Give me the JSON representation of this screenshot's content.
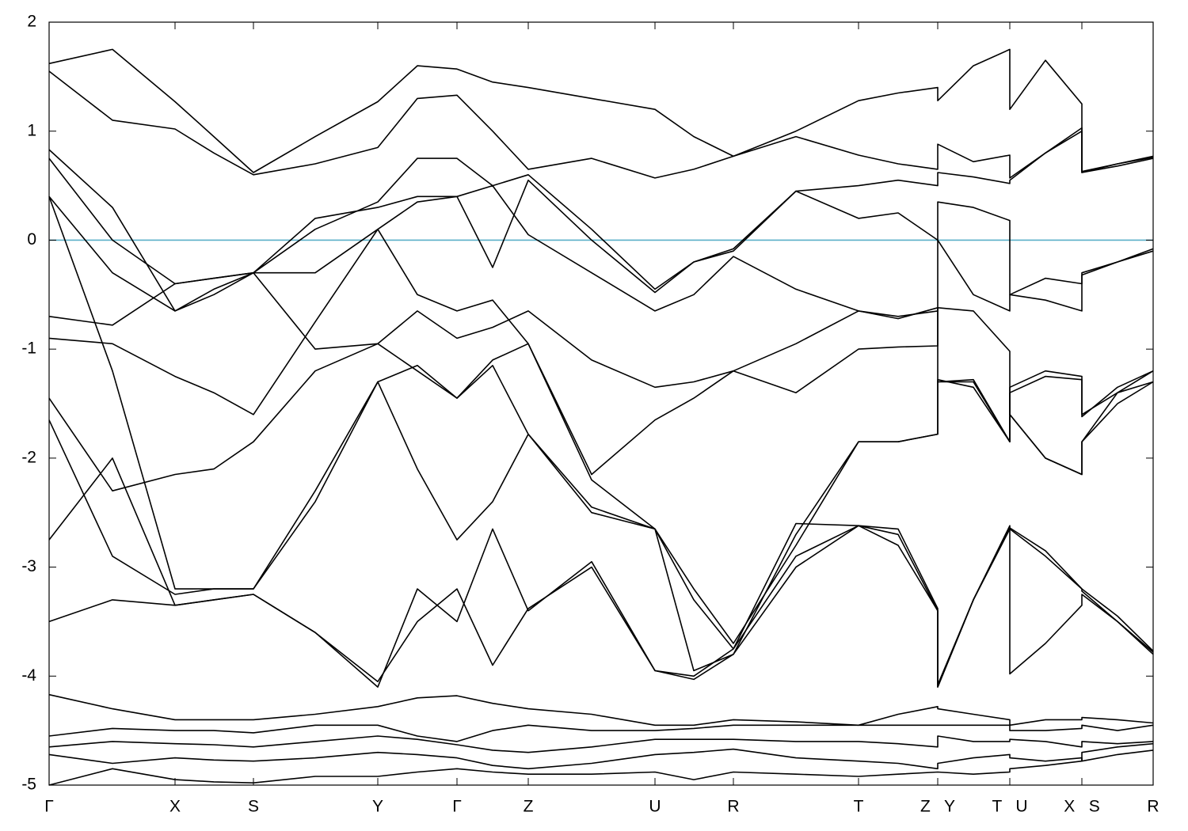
{
  "chart_data": {
    "type": "line",
    "xlim": [
      0,
      13.94
    ],
    "ylim": [
      -5,
      2
    ],
    "yticks": [
      -5,
      -4,
      -3,
      -2,
      -1,
      0,
      1,
      2
    ],
    "xticks": [
      {
        "value": 0,
        "label": "Γ"
      },
      {
        "value": 1.59,
        "label": "X"
      },
      {
        "value": 2.58,
        "label": "S"
      },
      {
        "value": 4.15,
        "label": "Y"
      },
      {
        "value": 5.15,
        "label": "Γ"
      },
      {
        "value": 6.05,
        "label": "Z"
      },
      {
        "value": 7.65,
        "label": "U"
      },
      {
        "value": 8.64,
        "label": "R"
      },
      {
        "value": 10.22,
        "label": "T"
      },
      {
        "value": 11.22,
        "label": "Z   Y"
      },
      {
        "value": 12.13,
        "label": "T   U"
      },
      {
        "value": 13.04,
        "label": "X   S"
      },
      {
        "value": 13.94,
        "label": "R"
      }
    ],
    "grid": true,
    "hline": {
      "value": 0,
      "color": "#5aafc8"
    },
    "x": [
      0,
      0.8,
      1.59,
      2.08,
      2.58,
      3.36,
      4.15,
      4.65,
      5.15,
      5.6,
      6.05,
      6.85,
      7.65,
      8.14,
      8.64,
      9.43,
      10.22,
      10.72,
      11.22,
      11.22,
      11.67,
      12.13,
      12.13,
      12.58,
      13.04,
      13.04,
      13.49,
      13.94
    ],
    "series": [
      {
        "color": "#000000",
        "values": [
          1.62,
          1.75,
          1.27,
          0.95,
          0.62,
          0.95,
          1.27,
          1.6,
          1.57,
          1.45,
          1.4,
          1.3,
          1.2,
          0.95,
          0.77,
          1.0,
          1.28,
          1.35,
          1.4,
          1.28,
          1.6,
          1.75,
          1.2,
          1.65,
          1.25,
          0.62,
          0.7,
          0.77
        ]
      },
      {
        "color": "#000000",
        "values": [
          1.55,
          1.1,
          1.02,
          0.8,
          0.6,
          0.7,
          0.85,
          1.3,
          1.33,
          1.0,
          0.65,
          0.75,
          0.57,
          0.65,
          0.77,
          0.95,
          0.78,
          0.7,
          0.65,
          0.88,
          0.72,
          0.78,
          0.57,
          0.8,
          1.03,
          0.63,
          0.7,
          0.76
        ]
      },
      {
        "color": "#000000",
        "values": [
          0.83,
          0.3,
          -0.65,
          -0.45,
          -0.3,
          0.2,
          0.3,
          0.4,
          0.4,
          -0.25,
          0.55,
          0.0,
          -0.48,
          -0.2,
          -0.1,
          0.45,
          0.5,
          0.55,
          0.5,
          0.62,
          0.58,
          0.52,
          0.55,
          0.8,
          1.0,
          0.62,
          0.68,
          0.75
        ]
      },
      {
        "color": "#000000",
        "values": [
          0.75,
          0.0,
          -0.4,
          -0.35,
          -0.3,
          0.1,
          0.35,
          0.75,
          0.75,
          0.5,
          0.6,
          0.1,
          -0.45,
          -0.2,
          -0.08,
          0.45,
          0.2,
          0.25,
          0.0,
          0.35,
          0.3,
          0.18,
          -0.5,
          -0.35,
          -0.4,
          -0.3,
          -0.2,
          -0.08
        ]
      },
      {
        "color": "#000000",
        "values": [
          0.4,
          -0.3,
          -0.65,
          -0.5,
          -0.3,
          -0.3,
          0.1,
          0.35,
          0.4,
          0.5,
          0.05,
          -0.3,
          -0.65,
          -0.5,
          -0.15,
          -0.45,
          -0.65,
          -0.7,
          -0.65,
          0.0,
          -0.5,
          -0.65,
          -0.5,
          -0.55,
          -0.65,
          -0.32,
          -0.2,
          -0.1
        ]
      },
      {
        "color": "#000000",
        "values": [
          0.4,
          -1.2,
          -3.2,
          -3.2,
          -3.2,
          -2.4,
          -1.3,
          -1.15,
          -1.45,
          -1.1,
          -0.95,
          -2.2,
          -2.65,
          -3.3,
          -3.75,
          -2.6,
          -2.62,
          -2.8,
          -3.4,
          -4.1,
          -3.3,
          -2.65,
          -2.65,
          -2.9,
          -3.2,
          -3.2,
          -3.45,
          -3.77
        ]
      },
      {
        "color": "#000000",
        "values": [
          -0.7,
          -0.78,
          -0.4,
          -0.35,
          -0.3,
          -1.0,
          -0.95,
          -0.65,
          -0.9,
          -0.8,
          -0.65,
          -1.1,
          -1.35,
          -1.3,
          -1.2,
          -0.95,
          -0.65,
          -0.72,
          -0.62,
          -1.3,
          -1.3,
          -1.85,
          -1.35,
          -1.2,
          -1.25,
          -1.6,
          -1.4,
          -1.2
        ]
      },
      {
        "color": "#000000",
        "values": [
          -0.9,
          -0.95,
          -1.25,
          -1.4,
          -1.6,
          -0.75,
          0.1,
          -0.5,
          -0.65,
          -0.55,
          -0.95,
          -2.15,
          -1.65,
          -1.45,
          -1.2,
          -1.4,
          -1.0,
          -0.98,
          -0.97,
          -0.62,
          -0.65,
          -1.02,
          -1.6,
          -2.0,
          -2.15,
          -1.85,
          -1.5,
          -1.3
        ]
      },
      {
        "color": "#000000",
        "values": [
          -1.45,
          -2.3,
          -2.15,
          -2.1,
          -1.85,
          -1.2,
          -0.95,
          -1.2,
          -1.45,
          -1.15,
          -1.78,
          -2.5,
          -2.65,
          -3.95,
          -3.8,
          -2.7,
          -1.85,
          -1.85,
          -1.78,
          -1.3,
          -1.28,
          -1.85,
          -1.6,
          -2.0,
          -2.15,
          -1.85,
          -1.4,
          -1.3
        ]
      },
      {
        "color": "#000000",
        "values": [
          -1.65,
          -2.9,
          -3.25,
          -3.2,
          -3.2,
          -2.3,
          -1.3,
          -2.1,
          -2.75,
          -2.4,
          -1.78,
          -2.45,
          -2.65,
          -3.2,
          -3.7,
          -2.8,
          -1.85,
          -1.85,
          -1.78,
          -1.28,
          -1.35,
          -1.85,
          -1.4,
          -1.25,
          -1.28,
          -1.62,
          -1.35,
          -1.2
        ]
      },
      {
        "color": "#000000",
        "values": [
          -2.75,
          -2.0,
          -3.35,
          -3.3,
          -3.25,
          -3.6,
          -4.1,
          -3.2,
          -3.5,
          -2.65,
          -3.4,
          -2.95,
          -3.95,
          -4.03,
          -3.8,
          -3.0,
          -2.62,
          -2.7,
          -3.4,
          -4.1,
          -3.3,
          -2.62,
          -3.98,
          -3.7,
          -3.35,
          -3.25,
          -3.5,
          -3.78
        ]
      },
      {
        "color": "#000000",
        "values": [
          -3.5,
          -3.3,
          -3.35,
          -3.3,
          -3.25,
          -3.6,
          -4.05,
          -3.5,
          -3.2,
          -3.9,
          -3.38,
          -3.0,
          -3.95,
          -4.0,
          -3.75,
          -2.9,
          -2.62,
          -2.65,
          -3.38,
          -4.08,
          -3.3,
          -2.64,
          -2.64,
          -2.85,
          -3.2,
          -3.22,
          -3.5,
          -3.8
        ]
      },
      {
        "color": "#000000",
        "values": [
          -4.17,
          -4.3,
          -4.4,
          -4.4,
          -4.4,
          -4.35,
          -4.28,
          -4.2,
          -4.18,
          -4.25,
          -4.3,
          -4.35,
          -4.45,
          -4.45,
          -4.4,
          -4.42,
          -4.45,
          -4.35,
          -4.28,
          -4.3,
          -4.35,
          -4.4,
          -4.45,
          -4.4,
          -4.4,
          -4.38,
          -4.4,
          -4.43
        ]
      },
      {
        "color": "#000000",
        "values": [
          -4.55,
          -4.48,
          -4.5,
          -4.5,
          -4.52,
          -4.45,
          -4.45,
          -4.55,
          -4.6,
          -4.5,
          -4.45,
          -4.5,
          -4.5,
          -4.48,
          -4.45,
          -4.45,
          -4.45,
          -4.45,
          -4.45,
          -4.45,
          -4.45,
          -4.45,
          -4.5,
          -4.5,
          -4.48,
          -4.45,
          -4.5,
          -4.45
        ]
      },
      {
        "color": "#000000",
        "values": [
          -4.65,
          -4.6,
          -4.62,
          -4.63,
          -4.65,
          -4.6,
          -4.55,
          -4.58,
          -4.63,
          -4.68,
          -4.7,
          -4.65,
          -4.58,
          -4.58,
          -4.58,
          -4.6,
          -4.6,
          -4.62,
          -4.65,
          -4.55,
          -4.6,
          -4.6,
          -4.58,
          -4.6,
          -4.65,
          -4.6,
          -4.62,
          -4.6
        ]
      },
      {
        "color": "#000000",
        "values": [
          -4.72,
          -4.8,
          -4.75,
          -4.77,
          -4.78,
          -4.75,
          -4.7,
          -4.72,
          -4.75,
          -4.82,
          -4.85,
          -4.8,
          -4.72,
          -4.7,
          -4.67,
          -4.75,
          -4.78,
          -4.8,
          -4.85,
          -4.8,
          -4.75,
          -4.72,
          -4.75,
          -4.78,
          -4.75,
          -4.78,
          -4.72,
          -4.68
        ]
      },
      {
        "color": "#000000",
        "values": [
          -5.0,
          -4.85,
          -4.95,
          -4.97,
          -4.98,
          -4.92,
          -4.92,
          -4.88,
          -4.85,
          -4.88,
          -4.9,
          -4.9,
          -4.88,
          -4.95,
          -4.88,
          -4.9,
          -4.92,
          -4.9,
          -4.88,
          -4.88,
          -4.9,
          -4.88,
          -4.85,
          -4.82,
          -4.78,
          -4.7,
          -4.65,
          -4.62
        ]
      }
    ]
  }
}
